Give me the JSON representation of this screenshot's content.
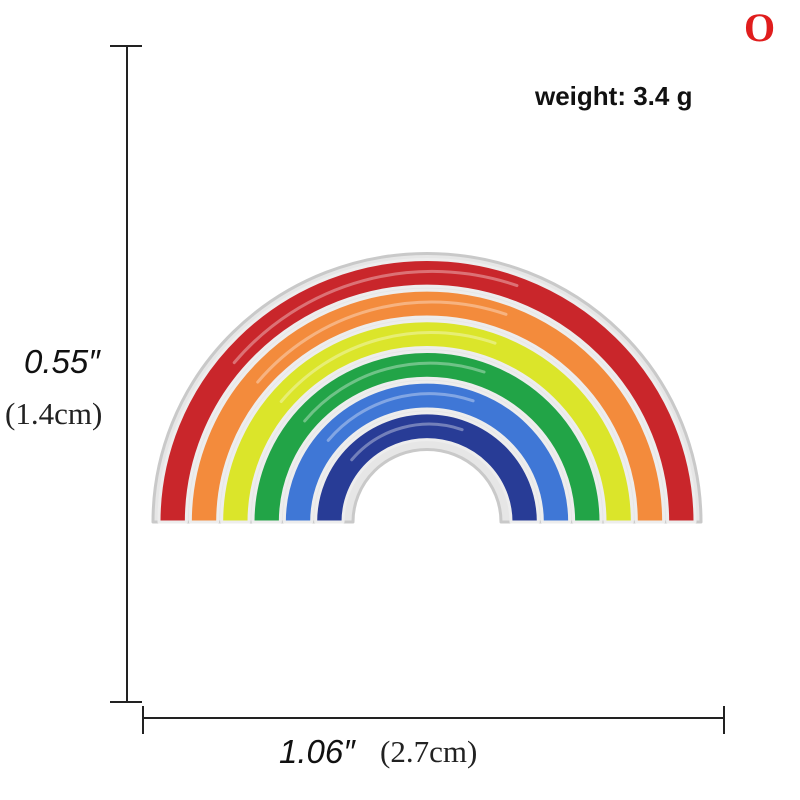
{
  "corner_mark": {
    "text": "O",
    "color": "#e01d1d"
  },
  "weight": {
    "text": "weight: 3.4 g"
  },
  "dimensions": {
    "height": {
      "imperial": "0.55″",
      "metric": "(1.4cm)"
    },
    "width": {
      "imperial": "1.06″",
      "metric": "(2.7cm)"
    }
  },
  "product": {
    "icon": "rainbow-pin",
    "outline_color": "#c9c9c9",
    "bands": [
      {
        "name": "red",
        "color": "#c9262b"
      },
      {
        "name": "orange",
        "color": "#f38b3c"
      },
      {
        "name": "yellow",
        "color": "#dbe52a"
      },
      {
        "name": "green",
        "color": "#22a447"
      },
      {
        "name": "blue",
        "color": "#3f77d6"
      },
      {
        "name": "indigo",
        "color": "#283c96"
      }
    ]
  }
}
